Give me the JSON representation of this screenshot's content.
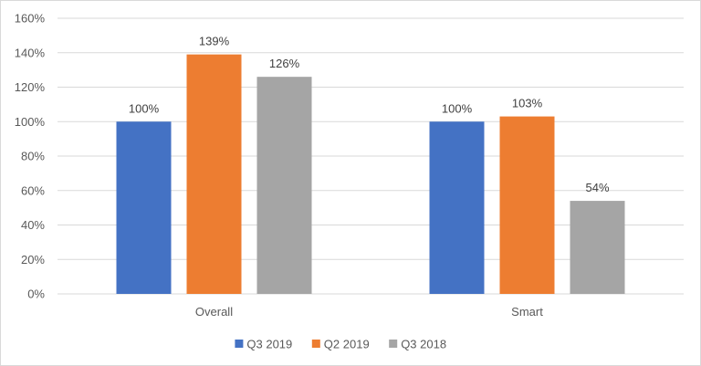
{
  "chart_data": {
    "type": "bar",
    "categories": [
      "Overall",
      "Smart"
    ],
    "series": [
      {
        "name": "Q3 2019",
        "color": "#4472c4",
        "values": [
          100,
          100
        ],
        "labels": [
          "100%",
          "100%"
        ]
      },
      {
        "name": "Q2 2019",
        "color": "#ed7d31",
        "values": [
          139,
          103
        ],
        "labels": [
          "139%",
          "103%"
        ]
      },
      {
        "name": "Q3 2018",
        "color": "#a5a5a5",
        "values": [
          126,
          54
        ],
        "labels": [
          "126%",
          "54%"
        ]
      }
    ],
    "ylim": [
      0,
      160
    ],
    "yticks": [
      "0%",
      "20%",
      "40%",
      "60%",
      "80%",
      "100%",
      "120%",
      "140%",
      "160%"
    ],
    "grid": true,
    "legend_position": "bottom",
    "title": "",
    "xlabel": "",
    "ylabel": ""
  }
}
